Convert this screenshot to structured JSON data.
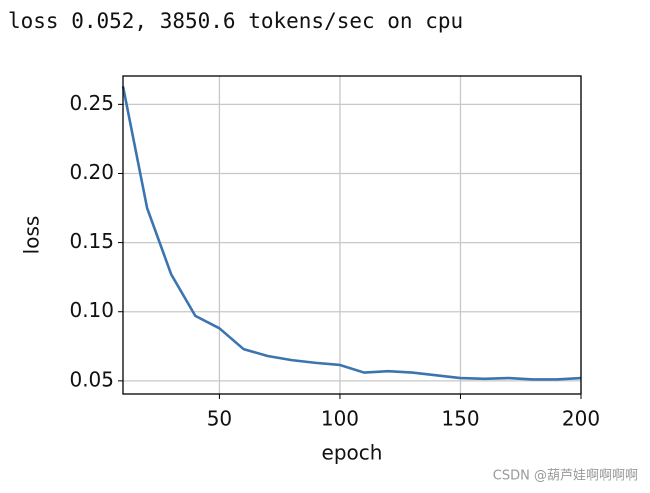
{
  "chart_data": {
    "type": "line",
    "title": "loss 0.052, 3850.6 tokens/sec on cpu",
    "x_label": "epoch",
    "y_label": "loss",
    "x": [
      10,
      20,
      30,
      40,
      50,
      60,
      70,
      80,
      90,
      100,
      110,
      120,
      130,
      140,
      150,
      160,
      170,
      180,
      190,
      200
    ],
    "series": [
      {
        "name": "loss",
        "color": "#3b75af",
        "values": [
          0.263,
          0.175,
          0.127,
          0.097,
          0.088,
          0.073,
          0.068,
          0.065,
          0.063,
          0.0615,
          0.056,
          0.057,
          0.056,
          0.054,
          0.052,
          0.0515,
          0.052,
          0.051,
          0.051,
          0.052
        ]
      }
    ],
    "xlim": [
      10,
      200
    ],
    "xticks": [
      50,
      100,
      150,
      200
    ],
    "ylim": [
      0.0405,
      0.2705
    ],
    "yticks": [
      0.05,
      {
        "value": 0.1,
        "label": "0.10"
      },
      0.15,
      {
        "value": 0.2,
        "label": "0.20"
      },
      0.25
    ],
    "grid": true,
    "watermark": "CSDN @葫芦娃啊啊啊啊"
  }
}
